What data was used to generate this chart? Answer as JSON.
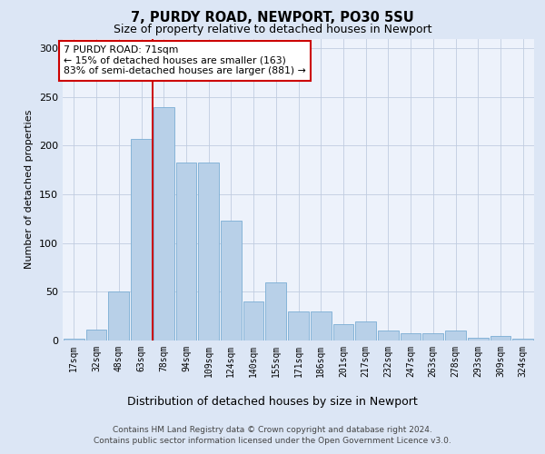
{
  "title1": "7, PURDY ROAD, NEWPORT, PO30 5SU",
  "title2": "Size of property relative to detached houses in Newport",
  "xlabel": "Distribution of detached houses by size in Newport",
  "ylabel": "Number of detached properties",
  "categories": [
    "17sqm",
    "32sqm",
    "48sqm",
    "63sqm",
    "78sqm",
    "94sqm",
    "109sqm",
    "124sqm",
    "140sqm",
    "155sqm",
    "171sqm",
    "186sqm",
    "201sqm",
    "217sqm",
    "232sqm",
    "247sqm",
    "263sqm",
    "278sqm",
    "293sqm",
    "309sqm",
    "324sqm"
  ],
  "values": [
    2,
    11,
    50,
    207,
    240,
    183,
    183,
    123,
    40,
    60,
    30,
    30,
    17,
    20,
    10,
    7,
    7,
    10,
    3,
    5,
    2
  ],
  "bar_color": "#b8d0e8",
  "bar_edge_color": "#7aadd4",
  "vline_color": "#cc0000",
  "vline_pos": 3.5,
  "annotation_text": "7 PURDY ROAD: 71sqm\n← 15% of detached houses are smaller (163)\n83% of semi-detached houses are larger (881) →",
  "annotation_box_color": "#ffffff",
  "annotation_box_edge": "#cc0000",
  "ylim": [
    0,
    310
  ],
  "yticks": [
    0,
    50,
    100,
    150,
    200,
    250,
    300
  ],
  "footer1": "Contains HM Land Registry data © Crown copyright and database right 2024.",
  "footer2": "Contains public sector information licensed under the Open Government Licence v3.0.",
  "bg_color": "#dce6f5",
  "plot_bg_color": "#edf2fb",
  "title1_fontsize": 10.5,
  "title2_fontsize": 9,
  "ylabel_fontsize": 8,
  "xlabel_fontsize": 9,
  "tick_fontsize": 7,
  "footer_fontsize": 6.5,
  "annot_fontsize": 7.8
}
